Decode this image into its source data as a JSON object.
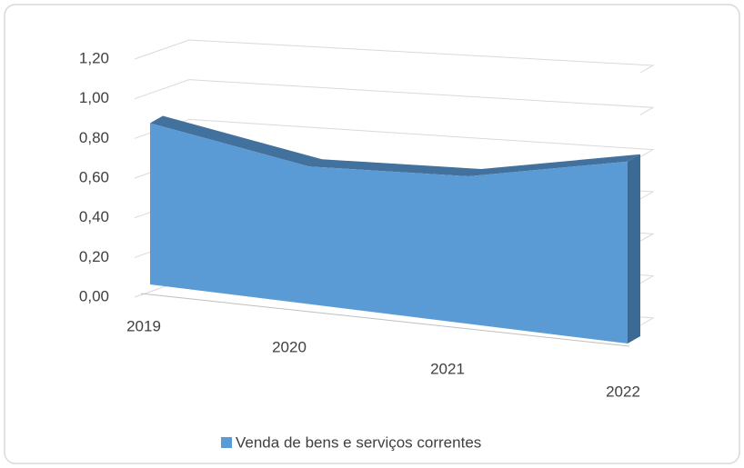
{
  "chart_data": {
    "type": "area",
    "categories": [
      "2019",
      "2020",
      "2021",
      "2022"
    ],
    "series": [
      {
        "name": "Venda de bens e serviços correntes",
        "color": "#5b9bd5",
        "values": [
          1.0,
          0.78,
          0.77,
          0.88
        ]
      }
    ],
    "ylim": [
      0,
      1.2
    ],
    "yticks": [
      {
        "value": 0,
        "label": "0,00"
      },
      {
        "value": 0.2,
        "label": "0,20"
      },
      {
        "value": 0.4,
        "label": "0,40"
      },
      {
        "value": 0.6,
        "label": "0,60"
      },
      {
        "value": 0.8,
        "label": "0,80"
      },
      {
        "value": 1.0,
        "label": "1,00"
      },
      {
        "value": 1.2,
        "label": "1,20"
      }
    ],
    "grid": true,
    "legend": "bottom"
  }
}
